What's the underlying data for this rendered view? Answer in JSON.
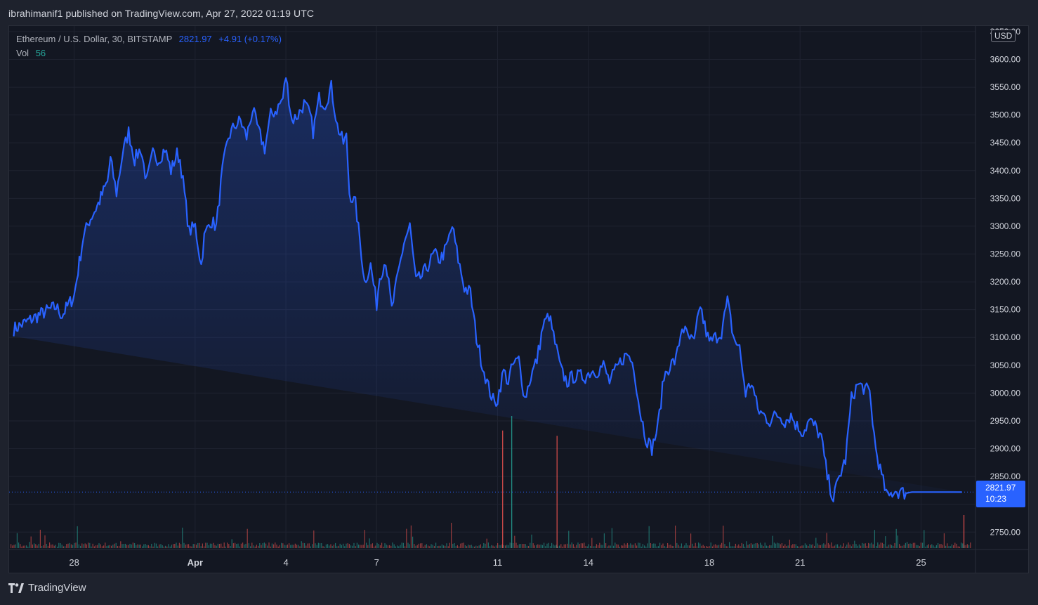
{
  "header": {
    "publish_text": "ibrahimanif1 published on TradingView.com, Apr 27, 2022 01:19 UTC"
  },
  "legend": {
    "symbol": "Ethereum / U.S. Dollar, 30, BITSTAMP",
    "last": "2821.97",
    "change": "+4.91 (+0.17%)",
    "vol_label": "Vol",
    "vol_value": "56"
  },
  "currency": "USD",
  "price_tag": {
    "price": "2821.97",
    "countdown": "10:23"
  },
  "footer": {
    "brand": "TradingView"
  },
  "colors": {
    "line": "#2962ff",
    "background": "#131722",
    "grid": "#1f2330",
    "volume_up": "#26a69a",
    "volume_down": "#ef5350"
  },
  "chart_data": {
    "type": "area",
    "title": "Ethereum / U.S. Dollar, 30, BITSTAMP",
    "ylim": [
      2720,
      3660
    ],
    "y_ticks": [
      2750,
      2800,
      2850,
      2900,
      2950,
      3000,
      3050,
      3100,
      3150,
      3200,
      3250,
      3300,
      3350,
      3400,
      3450,
      3500,
      3550,
      3600,
      3650
    ],
    "y_tick_labels": [
      "2750.00",
      "",
      "2850.00",
      "2900.00",
      "2950.00",
      "3000.00",
      "3050.00",
      "3100.00",
      "3150.00",
      "3200.00",
      "3250.00",
      "3300.00",
      "3350.00",
      "3400.00",
      "3450.00",
      "3500.00",
      "3550.00",
      "3600.00",
      "3650.00"
    ],
    "x_ticks": [
      {
        "label": "28",
        "day": 2,
        "bold": false
      },
      {
        "label": "Apr",
        "day": 6,
        "bold": true
      },
      {
        "label": "4",
        "day": 9,
        "bold": false
      },
      {
        "label": "7",
        "day": 12,
        "bold": false
      },
      {
        "label": "11",
        "day": 16,
        "bold": false
      },
      {
        "label": "14",
        "day": 19,
        "bold": false
      },
      {
        "label": "18",
        "day": 23,
        "bold": false
      },
      {
        "label": "21",
        "day": 26,
        "bold": false
      },
      {
        "label": "25",
        "day": 30,
        "bold": false
      }
    ],
    "x_range_days": [
      -0.15,
      31.8
    ],
    "series": [
      {
        "day": [
          0,
          0.5,
          1.0,
          1.4,
          1.6,
          2.0,
          2.3,
          2.5,
          2.8,
          3.1,
          3.2,
          3.4,
          3.6,
          3.8,
          4.0,
          4.2,
          4.4,
          4.6,
          4.8,
          5.0,
          5.2,
          5.4,
          5.5,
          5.6,
          5.8,
          6.0,
          6.2,
          6.3,
          6.5,
          6.7,
          6.9,
          7.1,
          7.3,
          7.5,
          7.7,
          7.9,
          8.1,
          8.3,
          8.5,
          8.7,
          8.9,
          9.0,
          9.2,
          9.4,
          9.6,
          9.8,
          9.9,
          10.1,
          10.3,
          10.5,
          10.7,
          10.9,
          11.0,
          11.1,
          11.3,
          11.5,
          11.6,
          11.8,
          12.0,
          12.1,
          12.3,
          12.5,
          12.7,
          12.9,
          13.1,
          13.3,
          13.5,
          13.7,
          13.9,
          14.1,
          14.3,
          14.5,
          14.7,
          14.9,
          15.1,
          15.3,
          15.5,
          15.7,
          15.9,
          16.0,
          16.2,
          16.35,
          16.5,
          16.7,
          16.9,
          17.1,
          17.3,
          17.5,
          17.7,
          17.9,
          18.1,
          18.3,
          18.5,
          18.7,
          18.9,
          19.1,
          19.3,
          19.5,
          19.7,
          19.9,
          20.1,
          20.3,
          20.5,
          20.7,
          20.9,
          21.1,
          21.3,
          21.5,
          21.7,
          21.9,
          22.1,
          22.3,
          22.5,
          22.7,
          22.8,
          23.0,
          23.2,
          23.4,
          23.6,
          23.8,
          24.0,
          24.2,
          24.4,
          24.6,
          24.8,
          25.0,
          25.2,
          25.3,
          25.5,
          25.7,
          25.9,
          26.1,
          26.3,
          26.5,
          26.7,
          26.9,
          27.1,
          27.3,
          27.5,
          27.7,
          27.9,
          28.1,
          28.3,
          28.5,
          28.7,
          28.9,
          29.1,
          29.3,
          29.5,
          29.7,
          29.9,
          30.0,
          30.2,
          30.4,
          30.6,
          30.8,
          31.0,
          31.2,
          31.4,
          31.6
        ],
        "price": [
          3115,
          3130,
          3145,
          3155,
          3140,
          3175,
          3280,
          3310,
          3340,
          3380,
          3420,
          3360,
          3430,
          3470,
          3420,
          3440,
          3380,
          3430,
          3420,
          3440,
          3400,
          3430,
          3420,
          3380,
          3290,
          3300,
          3230,
          3280,
          3310,
          3300,
          3400,
          3460,
          3480,
          3490,
          3460,
          3510,
          3470,
          3440,
          3500,
          3510,
          3530,
          3570,
          3490,
          3500,
          3520,
          3500,
          3470,
          3530,
          3520,
          3550,
          3480,
          3450,
          3460,
          3360,
          3340,
          3250,
          3200,
          3230,
          3160,
          3210,
          3240,
          3150,
          3210,
          3270,
          3300,
          3200,
          3210,
          3230,
          3250,
          3240,
          3260,
          3300,
          3240,
          3190,
          3180,
          3100,
          3050,
          3010,
          2980,
          2990,
          3040,
          3020,
          3050,
          3060,
          2990,
          3030,
          3060,
          3120,
          3140,
          3090,
          3040,
          3020,
          3030,
          3030,
          3030,
          3040,
          3040,
          3050,
          3020,
          3040,
          3060,
          3070,
          3050,
          2970,
          2920,
          2900,
          2940,
          3030,
          3050,
          3060,
          3120,
          3100,
          3090,
          3160,
          3130,
          3090,
          3100,
          3110,
          3165,
          3100,
          3080,
          3000,
          3020,
          2970,
          2960,
          2950,
          2960,
          2960,
          2950,
          2960,
          2940,
          2930,
          2950,
          2940,
          2920,
          2850,
          2810,
          2850,
          2880,
          2990,
          3015,
          3010,
          3000,
          2900,
          2850,
          2810,
          2825,
          2822,
          2820,
          2822,
          2822,
          2822,
          2822,
          2822,
          2822,
          2822,
          2822,
          2822,
          2822
        ]
      }
    ],
    "volume": {
      "unit_note": "",
      "spikes": [
        {
          "day": 16.15,
          "value": 890,
          "up": false
        },
        {
          "day": 16.45,
          "value": 1000,
          "up": true
        },
        {
          "day": 17.95,
          "value": 850,
          "up": false
        },
        {
          "day": 31.4,
          "value": 250,
          "up": false
        }
      ]
    }
  }
}
